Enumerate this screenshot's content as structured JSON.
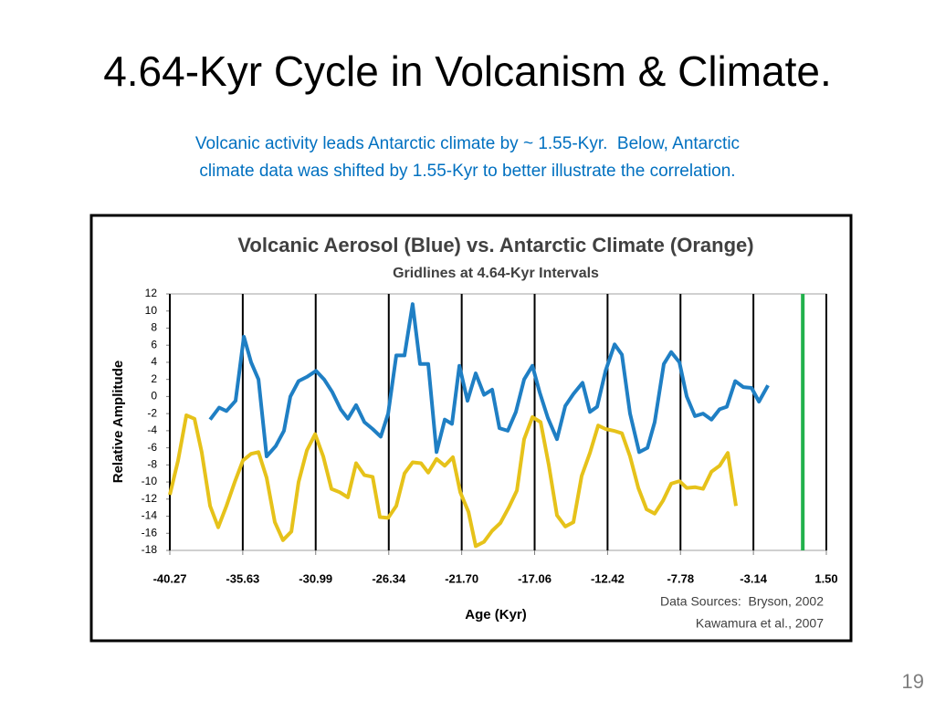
{
  "slide": {
    "title": "4.64-Kyr Cycle in Volcanism & Climate.",
    "subtitle": [
      "Volcanic activity leads Antarctic climate by ~ 1.55-Kyr.  Below, Antarctic",
      "climate data was shifted by 1.55-Kyr to better illustrate the correlation."
    ],
    "page_number": "19"
  },
  "chart_data": {
    "type": "line",
    "title": "Volcanic Aerosol (Blue) vs. Antarctic Climate (Orange)",
    "subtitle": "Gridlines at 4.64-Kyr Intervals",
    "x_label": "Age (Kyr)",
    "y_label": "Relative Amplitude",
    "annotations": [
      "Data Sources:  Bryson, 2002",
      "Kawamura et al., 2007"
    ],
    "xlim": [
      -40.27,
      1.5
    ],
    "xticks": [
      -40.27,
      -35.63,
      -30.99,
      -26.34,
      {
        "value": -21.7,
        "label": "-21.70"
      },
      -17.06,
      -12.42,
      -7.78,
      -3.14,
      {
        "value": 1.5,
        "label": "1.50"
      }
    ],
    "ylim": [
      -18,
      12
    ],
    "yticks": [
      -18,
      -16,
      -14,
      -12,
      -10,
      -8,
      -6,
      -4,
      -2,
      0,
      2,
      4,
      6,
      8,
      10,
      12
    ],
    "grid": "x",
    "reference_line": {
      "x": 0,
      "color": "#22b14c"
    },
    "series": [
      {
        "color": "#1f7fc4",
        "x": [
          -37.71,
          -37.13,
          -36.67,
          -36.09,
          -35.56,
          -35.1,
          -34.63,
          -34.11,
          -33.53,
          -33.01,
          -32.6,
          -32.08,
          -31.55,
          -30.97,
          -30.45,
          -29.93,
          -29.4,
          -28.94,
          -28.42,
          -27.89,
          -27.37,
          -26.85,
          -26.38,
          -25.86,
          -25.34,
          -24.82,
          -24.35,
          -23.83,
          -23.3,
          -22.78,
          -22.32,
          -21.85,
          -21.33,
          -20.81,
          -20.28,
          -19.76,
          -19.3,
          -18.77,
          -18.25,
          -17.73,
          -17.2,
          -16.74,
          -16.22,
          -15.64,
          -15.11,
          -14.59,
          -14.01,
          -13.54,
          -13.08,
          -12.55,
          -11.97,
          -11.51,
          -10.99,
          -10.41,
          -9.88,
          -9.42,
          -8.84,
          -8.37,
          -7.85,
          -7.38,
          -6.86,
          -6.34,
          -5.81,
          -5.29,
          -4.83,
          -4.3,
          -3.78,
          -3.26,
          -2.79,
          -2.21
        ],
        "values": [
          -2.7,
          -1.3,
          -1.7,
          -0.5,
          7,
          4,
          2,
          -7,
          -5.8,
          -4,
          0,
          1.8,
          2.3,
          3,
          2,
          0.5,
          -1.5,
          -2.6,
          -1,
          -3,
          -3.8,
          -4.7,
          -2,
          4.8,
          4.8,
          10.8,
          3.8,
          3.8,
          -6.5,
          -2.7,
          -3.2,
          3.6,
          -0.5,
          2.7,
          0.2,
          0.8,
          -3.7,
          -4,
          -1.8,
          2,
          3.6,
          0.5,
          -2.5,
          -5,
          -1.1,
          0.3,
          1.6,
          -1.8,
          -1.2,
          3,
          6.1,
          4.9,
          -2,
          -6.5,
          -6,
          -3,
          3.8,
          5.2,
          4,
          0,
          -2.3,
          -2,
          -2.7,
          -1.5,
          -1.2,
          1.8,
          1.1,
          1,
          -0.6,
          1.3
        ]
      },
      {
        "color": "#e6c21a",
        "x": [
          -40.27,
          -39.75,
          -39.22,
          -38.7,
          -38.24,
          -37.71,
          -37.19,
          -36.67,
          -36.14,
          -35.62,
          -35.1,
          -34.63,
          -34.11,
          -33.59,
          -33.07,
          -32.54,
          -32.08,
          -31.55,
          -31.03,
          -30.51,
          -29.99,
          -29.46,
          -28.94,
          -28.42,
          -27.89,
          -27.37,
          -26.91,
          -26.38,
          -25.86,
          -25.34,
          -24.82,
          -24.29,
          -23.83,
          -23.3,
          -22.78,
          -22.26,
          -21.79,
          -21.27,
          -20.81,
          -20.28,
          -19.76,
          -19.24,
          -18.71,
          -18.19,
          -17.73,
          -17.2,
          -16.68,
          -16.16,
          -15.64,
          -15.11,
          -14.59,
          -14.07,
          -13.54,
          -13.02,
          -12.55,
          -12.03,
          -11.51,
          -10.99,
          -10.46,
          -9.94,
          -9.42,
          -8.9,
          -8.37,
          -7.85,
          -7.38,
          -6.86,
          -6.34,
          -5.81,
          -5.29,
          -4.77,
          -4.25
        ],
        "values": [
          -11.5,
          -7.5,
          -2.2,
          -2.6,
          -6.5,
          -12.8,
          -15.3,
          -12.8,
          -10,
          -7.5,
          -6.7,
          -6.5,
          -9.5,
          -14.7,
          -16.8,
          -15.8,
          -10,
          -6.3,
          -4.4,
          -7,
          -10.8,
          -11.2,
          -11.8,
          -7.8,
          -9.2,
          -9.4,
          -14.1,
          -14.2,
          -12.8,
          -9,
          -7.7,
          -7.8,
          -8.9,
          -7.3,
          -8.1,
          -7.1,
          -11.2,
          -13.5,
          -17.5,
          -17,
          -15.7,
          -14.8,
          -13,
          -11,
          -5,
          -2.4,
          -3,
          -8,
          -13.9,
          -15.2,
          -14.7,
          -9.3,
          -6.6,
          -3.4,
          -3.8,
          -4,
          -4.3,
          -7,
          -10.7,
          -13.2,
          -13.7,
          -12.2,
          -10.2,
          -9.9,
          -10.7,
          -10.6,
          -10.8,
          -8.8,
          -8.1,
          -6.6,
          -12.8
        ]
      }
    ]
  }
}
